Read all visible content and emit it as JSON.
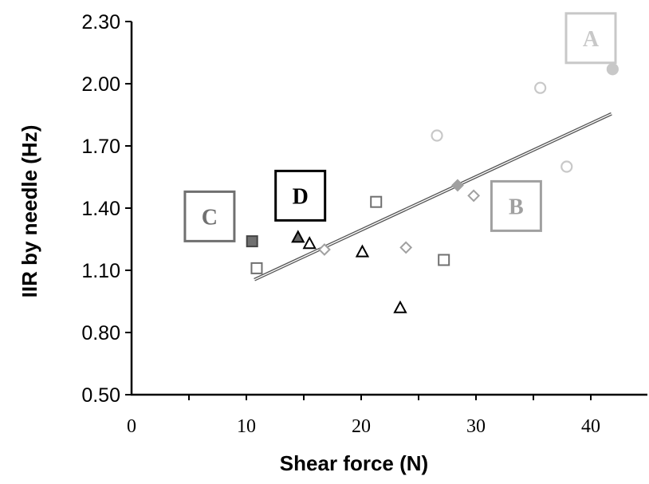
{
  "chart_data": {
    "type": "scatter",
    "title": "",
    "xlabel": "Shear force (N)",
    "ylabel": "IIR by needle (Hz)",
    "xlim": [
      0,
      45
    ],
    "ylim": [
      0.5,
      2.3
    ],
    "x_ticks": [
      0,
      10,
      20,
      30,
      40
    ],
    "x_tick_labels": [
      "0",
      "10",
      "20",
      "30",
      "40"
    ],
    "y_ticks": [
      0.5,
      0.8,
      1.1,
      1.4,
      1.7,
      2.0,
      2.3
    ],
    "y_tick_labels": [
      "0.50",
      "0.80",
      "1.10",
      "1.40",
      "1.70",
      "2.00",
      "2.30"
    ],
    "grid": false,
    "series": [
      {
        "group": "A",
        "marker": "circle",
        "color": "#c8c8c8",
        "points": [
          {
            "x": 26.6,
            "y": 1.75,
            "filled": false
          },
          {
            "x": 35.6,
            "y": 1.98,
            "filled": false
          },
          {
            "x": 37.9,
            "y": 1.6,
            "filled": false
          },
          {
            "x": 41.9,
            "y": 2.07,
            "filled": true
          }
        ]
      },
      {
        "group": "B",
        "marker": "diamond",
        "color": "#a0a0a0",
        "points": [
          {
            "x": 16.8,
            "y": 1.2,
            "filled": false
          },
          {
            "x": 23.9,
            "y": 1.21,
            "filled": false
          },
          {
            "x": 28.4,
            "y": 1.51,
            "filled": true
          },
          {
            "x": 29.8,
            "y": 1.46,
            "filled": false
          }
        ]
      },
      {
        "group": "C",
        "marker": "square",
        "color": "#707070",
        "points": [
          {
            "x": 10.5,
            "y": 1.24,
            "filled": true
          },
          {
            "x": 10.9,
            "y": 1.11,
            "filled": false
          },
          {
            "x": 21.3,
            "y": 1.43,
            "filled": false
          },
          {
            "x": 27.2,
            "y": 1.15,
            "filled": false
          }
        ]
      },
      {
        "group": "D",
        "marker": "triangle",
        "color": "#000000",
        "points": [
          {
            "x": 14.5,
            "y": 1.26,
            "filled": true
          },
          {
            "x": 15.5,
            "y": 1.23,
            "filled": false
          },
          {
            "x": 20.1,
            "y": 1.19,
            "filled": false
          },
          {
            "x": 23.4,
            "y": 0.92,
            "filled": false
          }
        ]
      }
    ],
    "trendline": {
      "x": [
        10.7,
        41.8
      ],
      "y": [
        1.055,
        1.855
      ]
    },
    "annotations": [
      {
        "text": "A",
        "x": 40.0,
        "y": 2.22,
        "color": "#c8c8c8"
      },
      {
        "text": "B",
        "x": 33.5,
        "y": 1.41,
        "color": "#a0a0a0"
      },
      {
        "text": "C",
        "x": 6.8,
        "y": 1.36,
        "color": "#707070"
      },
      {
        "text": "D",
        "x": 14.7,
        "y": 1.46,
        "color": "#000000"
      }
    ]
  }
}
